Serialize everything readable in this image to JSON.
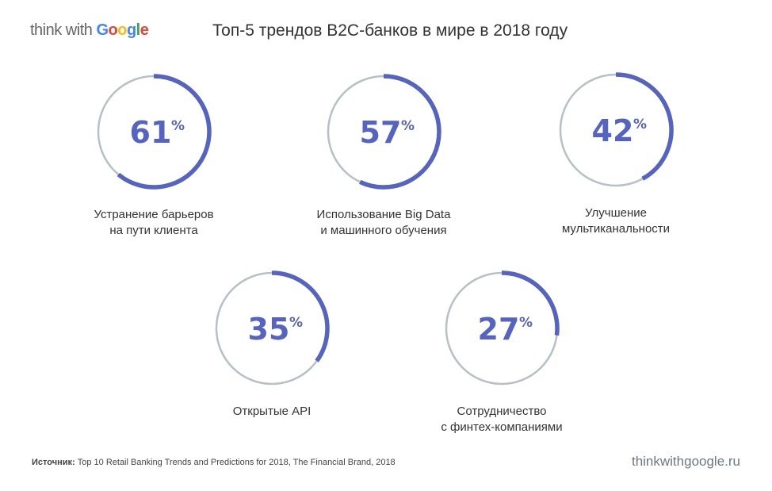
{
  "logo": {
    "prefix": "think with ",
    "brand": "Google",
    "brand_colors": [
      "#4285F4",
      "#EA4335",
      "#FBBC05",
      "#4285F4",
      "#34A853",
      "#EA4335"
    ]
  },
  "title": "Топ-5 трендов B2C-банков в мире в 2018 году",
  "chart_data": {
    "type": "donut-progress",
    "title": "Топ-5 трендов B2C-банков в мире в 2018 году",
    "unit": "%",
    "colors": {
      "fill": "#5563c1",
      "track": "#b6c0c5"
    },
    "items": [
      {
        "value": 61,
        "label_lines": [
          "Устранение барьеров",
          "на пути клиента"
        ]
      },
      {
        "value": 57,
        "label_lines": [
          "Использование Big Data",
          "и машинного обучения"
        ]
      },
      {
        "value": 42,
        "label_lines": [
          "Улучшение",
          "мультиканальности"
        ]
      },
      {
        "value": 35,
        "label_lines": [
          "Открытые API"
        ]
      },
      {
        "value": 27,
        "label_lines": [
          "Сотрудничество",
          "с финтех-компаниями"
        ]
      }
    ]
  },
  "footer": {
    "source_label": "Источник:",
    "source_text": " Top 10 Retail Banking Trends and Predictions for 2018, The Financial Brand, 2018",
    "site": "thinkwithgoogle.ru"
  }
}
